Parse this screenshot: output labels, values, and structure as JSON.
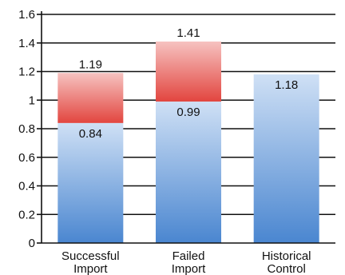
{
  "chart_data": {
    "type": "bar",
    "stacked": true,
    "categories": [
      [
        "Successful",
        "Import"
      ],
      [
        "Failed",
        "Import"
      ],
      [
        "Historical",
        "Control"
      ]
    ],
    "series": [
      {
        "values": [
          0.84,
          0.99,
          1.18
        ],
        "color": "#4f8fd6"
      },
      {
        "values": [
          0.35,
          0.42,
          0
        ],
        "color": "#e14a46"
      }
    ],
    "bar_top_labels": [
      "1.19",
      "1.41",
      ""
    ],
    "segment_labels": [
      "0.84",
      "0.99",
      "1.18"
    ],
    "yticks": [
      "0",
      "0.2",
      "0.4",
      "0.6",
      "0.8",
      "1",
      "1.2",
      "1.4",
      "1.6"
    ],
    "ylim": [
      0,
      1.6
    ],
    "grid": true,
    "title": "",
    "xlabel": "",
    "ylabel": ""
  }
}
